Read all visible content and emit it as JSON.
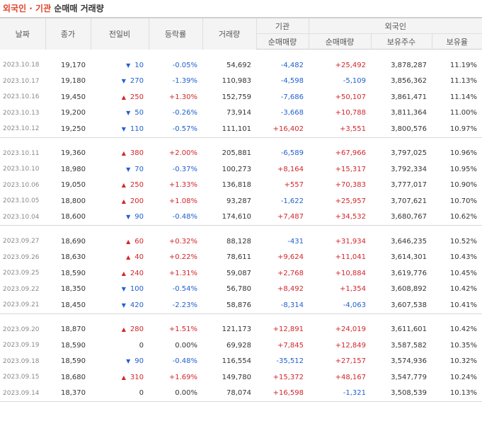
{
  "title": {
    "org": "외국인 · 기관",
    "rest": "순매매 거래량"
  },
  "headers": {
    "date": "날짜",
    "close": "종가",
    "change": "전일비",
    "rate": "등락률",
    "volume": "거래량",
    "inst": "기관",
    "foreign": "외국인",
    "inst_net": "순매매량",
    "foreign_net": "순매매량",
    "foreign_hold": "보유주수",
    "foreign_ratio": "보유율"
  },
  "groups": [
    [
      {
        "date": "2023.10.18",
        "close": "19,170",
        "dir": "down",
        "change": "10",
        "rate": "-0.05%",
        "volume": "54,692",
        "inst": "-4,482",
        "foreign": "+25,492",
        "hold": "3,878,287",
        "ratio": "11.19%"
      },
      {
        "date": "2023.10.17",
        "close": "19,180",
        "dir": "down",
        "change": "270",
        "rate": "-1.39%",
        "volume": "110,983",
        "inst": "-4,598",
        "foreign": "-5,109",
        "hold": "3,856,362",
        "ratio": "11.13%"
      },
      {
        "date": "2023.10.16",
        "close": "19,450",
        "dir": "up",
        "change": "250",
        "rate": "+1.30%",
        "volume": "152,759",
        "inst": "-7,686",
        "foreign": "+50,107",
        "hold": "3,861,471",
        "ratio": "11.14%"
      },
      {
        "date": "2023.10.13",
        "close": "19,200",
        "dir": "down",
        "change": "50",
        "rate": "-0.26%",
        "volume": "73,914",
        "inst": "-3,668",
        "foreign": "+10,788",
        "hold": "3,811,364",
        "ratio": "11.00%"
      },
      {
        "date": "2023.10.12",
        "close": "19,250",
        "dir": "down",
        "change": "110",
        "rate": "-0.57%",
        "volume": "111,101",
        "inst": "+16,402",
        "foreign": "+3,551",
        "hold": "3,800,576",
        "ratio": "10.97%"
      }
    ],
    [
      {
        "date": "2023.10.11",
        "close": "19,360",
        "dir": "up",
        "change": "380",
        "rate": "+2.00%",
        "volume": "205,881",
        "inst": "-6,589",
        "foreign": "+67,966",
        "hold": "3,797,025",
        "ratio": "10.96%"
      },
      {
        "date": "2023.10.10",
        "close": "18,980",
        "dir": "down",
        "change": "70",
        "rate": "-0.37%",
        "volume": "100,273",
        "inst": "+8,164",
        "foreign": "+15,317",
        "hold": "3,792,334",
        "ratio": "10.95%"
      },
      {
        "date": "2023.10.06",
        "close": "19,050",
        "dir": "up",
        "change": "250",
        "rate": "+1.33%",
        "volume": "136,818",
        "inst": "+557",
        "foreign": "+70,383",
        "hold": "3,777,017",
        "ratio": "10.90%"
      },
      {
        "date": "2023.10.05",
        "close": "18,800",
        "dir": "up",
        "change": "200",
        "rate": "+1.08%",
        "volume": "93,287",
        "inst": "-1,622",
        "foreign": "+25,957",
        "hold": "3,707,621",
        "ratio": "10.70%"
      },
      {
        "date": "2023.10.04",
        "close": "18,600",
        "dir": "down",
        "change": "90",
        "rate": "-0.48%",
        "volume": "174,610",
        "inst": "+7,487",
        "foreign": "+34,532",
        "hold": "3,680,767",
        "ratio": "10.62%"
      }
    ],
    [
      {
        "date": "2023.09.27",
        "close": "18,690",
        "dir": "up",
        "change": "60",
        "rate": "+0.32%",
        "volume": "88,128",
        "inst": "-431",
        "foreign": "+31,934",
        "hold": "3,646,235",
        "ratio": "10.52%"
      },
      {
        "date": "2023.09.26",
        "close": "18,630",
        "dir": "up",
        "change": "40",
        "rate": "+0.22%",
        "volume": "78,611",
        "inst": "+9,624",
        "foreign": "+11,041",
        "hold": "3,614,301",
        "ratio": "10.43%"
      },
      {
        "date": "2023.09.25",
        "close": "18,590",
        "dir": "up",
        "change": "240",
        "rate": "+1.31%",
        "volume": "59,087",
        "inst": "+2,768",
        "foreign": "+10,884",
        "hold": "3,619,776",
        "ratio": "10.45%"
      },
      {
        "date": "2023.09.22",
        "close": "18,350",
        "dir": "down",
        "change": "100",
        "rate": "-0.54%",
        "volume": "56,780",
        "inst": "+8,492",
        "foreign": "+1,354",
        "hold": "3,608,892",
        "ratio": "10.42%"
      },
      {
        "date": "2023.09.21",
        "close": "18,450",
        "dir": "down",
        "change": "420",
        "rate": "-2.23%",
        "volume": "58,876",
        "inst": "-8,314",
        "foreign": "-4,063",
        "hold": "3,607,538",
        "ratio": "10.41%"
      }
    ],
    [
      {
        "date": "2023.09.20",
        "close": "18,870",
        "dir": "up",
        "change": "280",
        "rate": "+1.51%",
        "volume": "121,173",
        "inst": "+12,891",
        "foreign": "+24,019",
        "hold": "3,611,601",
        "ratio": "10.42%"
      },
      {
        "date": "2023.09.19",
        "close": "18,590",
        "dir": "flat",
        "change": "0",
        "rate": "0.00%",
        "volume": "69,928",
        "inst": "+7,845",
        "foreign": "+12,849",
        "hold": "3,587,582",
        "ratio": "10.35%"
      },
      {
        "date": "2023.09.18",
        "close": "18,590",
        "dir": "down",
        "change": "90",
        "rate": "-0.48%",
        "volume": "116,554",
        "inst": "-35,512",
        "foreign": "+27,157",
        "hold": "3,574,936",
        "ratio": "10.32%"
      },
      {
        "date": "2023.09.15",
        "close": "18,680",
        "dir": "up",
        "change": "310",
        "rate": "+1.69%",
        "volume": "149,780",
        "inst": "+15,372",
        "foreign": "+48,167",
        "hold": "3,547,779",
        "ratio": "10.24%"
      },
      {
        "date": "2023.09.14",
        "close": "18,370",
        "dir": "flat",
        "change": "0",
        "rate": "0.00%",
        "volume": "78,074",
        "inst": "+16,598",
        "foreign": "-1,321",
        "hold": "3,508,539",
        "ratio": "10.13%"
      }
    ]
  ]
}
